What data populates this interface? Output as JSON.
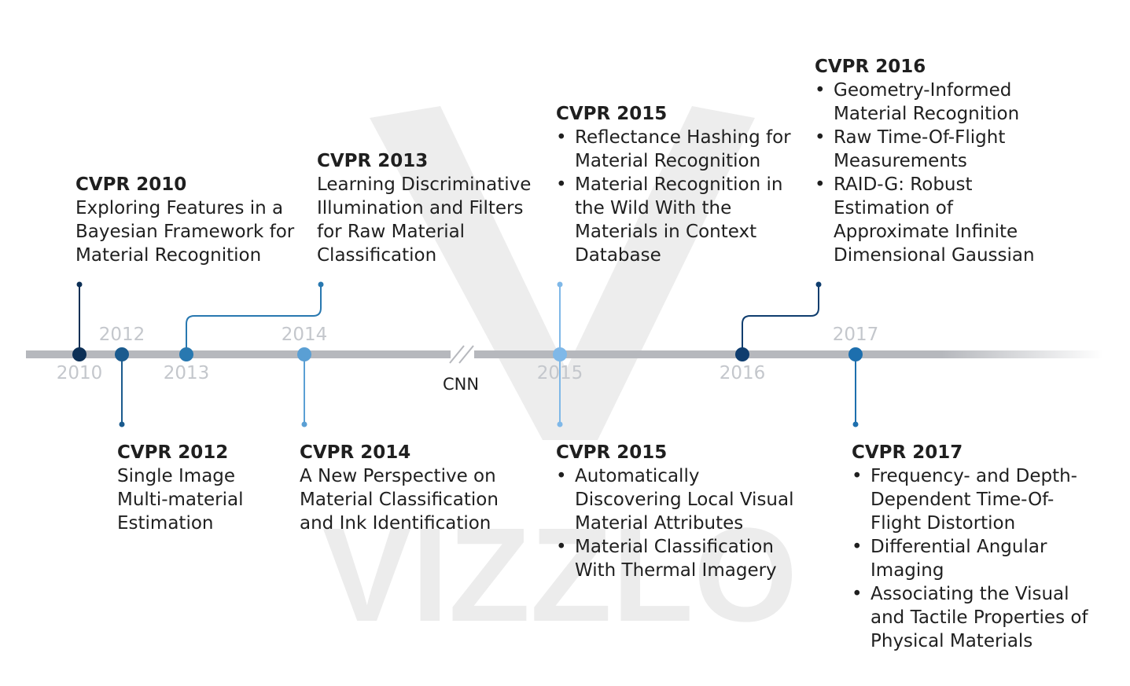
{
  "watermark": "VIZZLO",
  "axis_labels": {
    "y2010": "2010",
    "y2012": "2012",
    "y2013": "2013",
    "y2014": "2014",
    "y2015": "2015",
    "y2016": "2016",
    "y2017": "2017"
  },
  "break_label": "CNN",
  "events": {
    "e2010": {
      "title": "CVPR 2010",
      "text": "Exploring Features in a Bayesian Framework for Material Recognition"
    },
    "e2012": {
      "title": "CVPR 2012",
      "text": "Single Image Multi-material Estimation"
    },
    "e2013": {
      "title": "CVPR 2013",
      "text": "Learning Discriminative Illumination and Filters for Raw Material Classification"
    },
    "e2014": {
      "title": "CVPR 2014",
      "text": "A New Perspective on Material Classification and Ink Identification"
    },
    "e2015a": {
      "title": "CVPR 2015",
      "items": [
        "Reflectance Hashing for Material Recognition",
        "Material Recognition in the Wild With the Materials in Context Database"
      ]
    },
    "e2015b": {
      "title": "CVPR 2015",
      "items": [
        "Automatically Discovering Local Visual Material Attributes",
        "Material Classification With Thermal Imagery"
      ]
    },
    "e2016": {
      "title": "CVPR 2016",
      "items": [
        "Geometry-Informed Material Recognition",
        "Raw Time-Of-Flight Measurements",
        "RAID-G: Robust Estimation of Approximate Infinite Dimensional Gaussian"
      ]
    },
    "e2017": {
      "title": "CVPR 2017",
      "items": [
        "Frequency- and Depth-Dependent Time-Of-Flight Distortion",
        "Differential Angular Imaging",
        "Associating the Visual and Tactile Properties of Physical Materials"
      ]
    }
  },
  "colors": {
    "axis": "#b6b8bd",
    "c2010": "#0c2f55",
    "c2012": "#1b5b8e",
    "c2013": "#2878b0",
    "c2014": "#5a9fd4",
    "c2015": "#7fb8e8",
    "c2016": "#0f3d6e",
    "c2017": "#1d6fae"
  }
}
